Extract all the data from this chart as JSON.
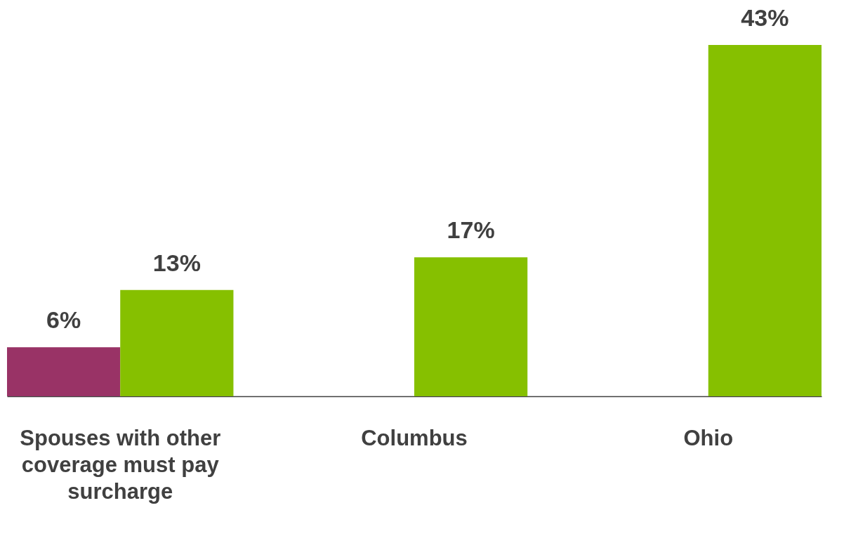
{
  "chart_data": {
    "type": "bar",
    "categories": [
      "Spouses with other coverage must pay surcharge",
      "Columbus",
      "Ohio"
    ],
    "series": [
      {
        "color": "#993366",
        "values": [
          6,
          null,
          null
        ],
        "value_labels": [
          "6%",
          null,
          null
        ]
      },
      {
        "color": "#86c000",
        "values": [
          13,
          17,
          43
        ],
        "value_labels": [
          "13%",
          "17%",
          "43%"
        ]
      }
    ],
    "grid": false,
    "legend": false
  }
}
